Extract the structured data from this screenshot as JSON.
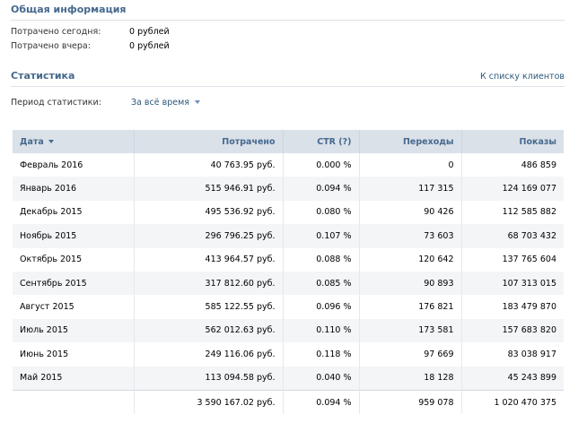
{
  "general": {
    "title": "Общая информация",
    "spent_today_label": "Потрачено сегодня:",
    "spent_today_value": "0 рублей",
    "spent_yesterday_label": "Потрачено вчера:",
    "spent_yesterday_value": "0 рублей"
  },
  "stats": {
    "title": "Статистика",
    "client_list_link": "К списку клиентов",
    "period_label": "Период статистики:",
    "period_value": "За всё время"
  },
  "table": {
    "headers": [
      "Дата",
      "Потрачено",
      "CTR (?)",
      "Переходы",
      "Показы"
    ],
    "rows": [
      [
        "Февраль 2016",
        "40 763.95 руб.",
        "0.000 %",
        "0",
        "486 859"
      ],
      [
        "Январь 2016",
        "515 946.91 руб.",
        "0.094 %",
        "117 315",
        "124 169 077"
      ],
      [
        "Декабрь 2015",
        "495 536.92 руб.",
        "0.080 %",
        "90 426",
        "112 585 882"
      ],
      [
        "Ноябрь 2015",
        "296 796.25 руб.",
        "0.107 %",
        "73 603",
        "68 703 432"
      ],
      [
        "Октябрь 2015",
        "413 964.57 руб.",
        "0.088 %",
        "120 642",
        "137 765 604"
      ],
      [
        "Сентябрь 2015",
        "317 812.60 руб.",
        "0.085 %",
        "90 893",
        "107 313 015"
      ],
      [
        "Август 2015",
        "585 122.55 руб.",
        "0.096 %",
        "176 821",
        "183 479 870"
      ],
      [
        "Июль 2015",
        "562 012.63 руб.",
        "0.110 %",
        "173 581",
        "157 683 820"
      ],
      [
        "Июнь 2015",
        "249 116.06 руб.",
        "0.118 %",
        "97 669",
        "83 038 917"
      ],
      [
        "Май 2015",
        "113 094.58 руб.",
        "0.040 %",
        "18 128",
        "45 243 899"
      ]
    ],
    "totals": [
      "",
      "3 590 167.02 руб.",
      "0.094 %",
      "959 078",
      "1 020 470 375"
    ]
  }
}
